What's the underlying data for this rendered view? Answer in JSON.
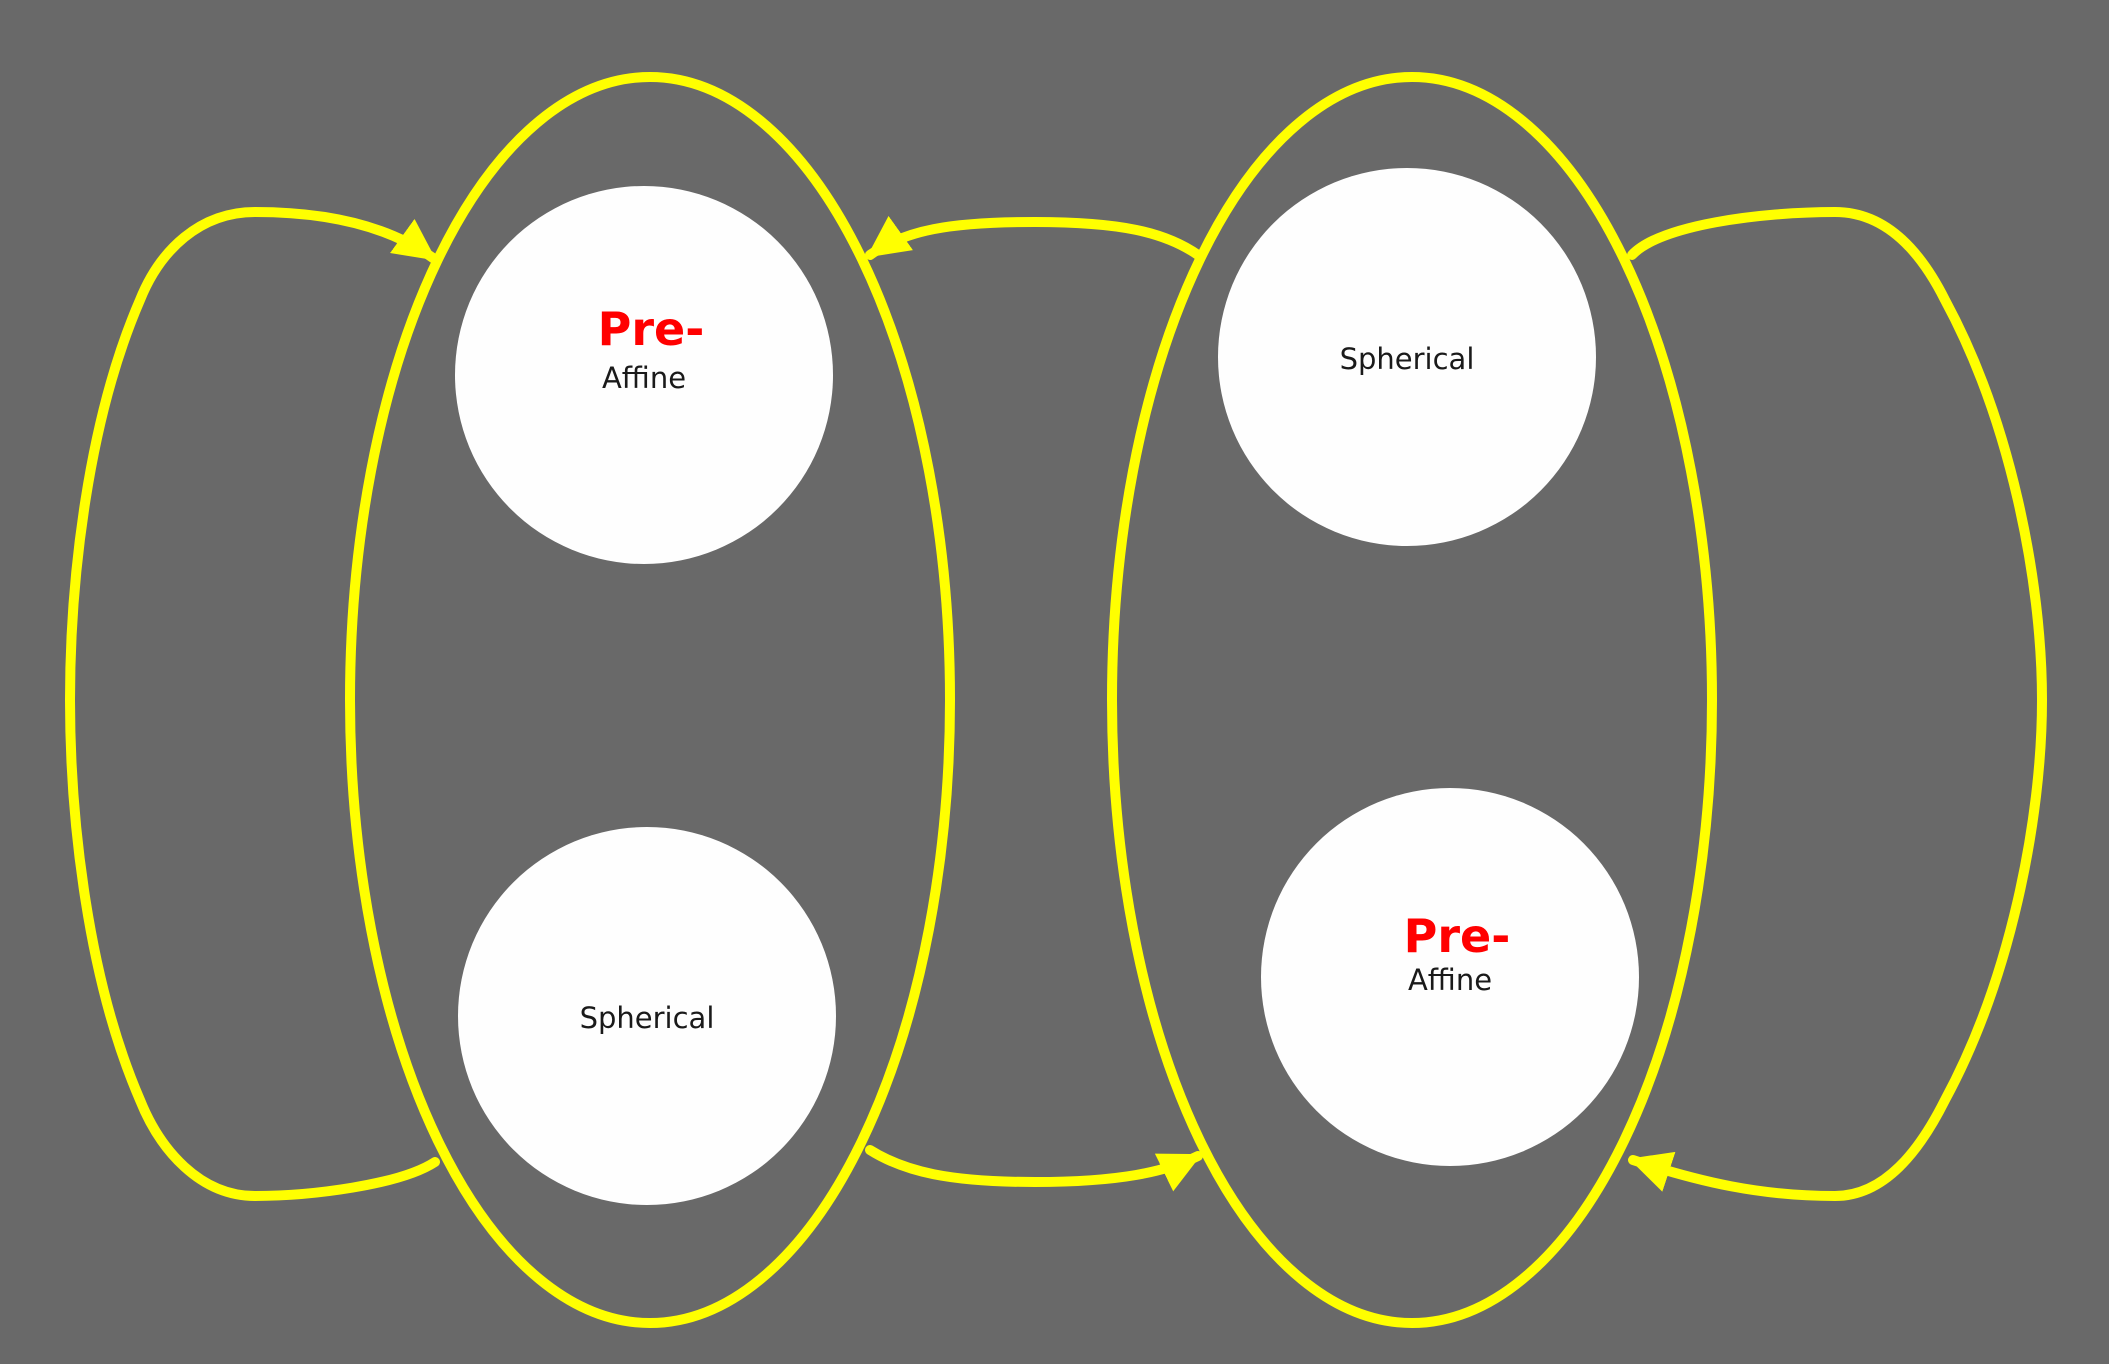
{
  "colors": {
    "background": "#696969",
    "outline": "#ffff00",
    "circle_fill": "#fefefe",
    "label": "#1a1a1a",
    "highlight": "#ff0000"
  },
  "groups": [
    {
      "top_node": {
        "highlight": "Pre-",
        "label": "Affine"
      },
      "bottom_node": {
        "highlight": "",
        "label": "Spherical"
      }
    },
    {
      "top_node": {
        "highlight": "",
        "label": "Spherical"
      },
      "bottom_node": {
        "highlight": "Pre-",
        "label": "Affine"
      }
    }
  ]
}
